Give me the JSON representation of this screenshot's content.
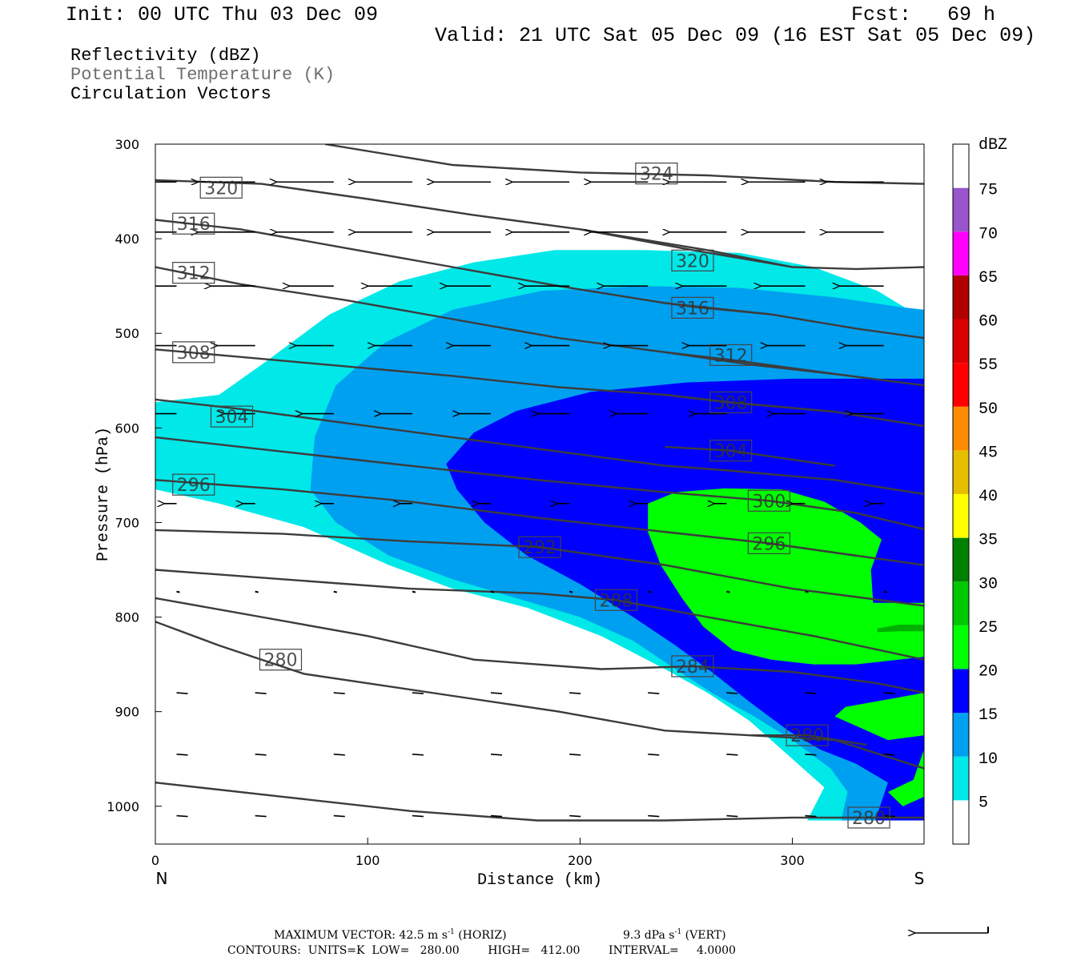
{
  "header": {
    "init": "Init: 00 UTC Thu 03 Dec 09",
    "fcst": "Fcst:   69 h",
    "valid": "Valid: 21 UTC Sat 05 Dec 09 (16 EST Sat 05 Dec 09)"
  },
  "fields": [
    "Reflectivity (dBZ)",
    "Potential Temperature (K)",
    "Circulation Vectors"
  ],
  "footer": {
    "max_vector_prefix": "MAXIMUM VECTOR:  42.5 m s",
    "max_vector_h_unit": " (HORIZ)",
    "max_vector_v": "9.3 dPa s",
    "max_vector_v_unit": " (VERT)",
    "exp": "-1",
    "contours_line": "CONTOURS:  UNITS=K  LOW=   280.00        HIGH=   412.00        INTERVAL=     4.0000"
  },
  "colors": {
    "cyan": "#00e8e8",
    "lightblue": "#00a0f0",
    "blue": "#0000ff",
    "green": "#00ff00",
    "darkgreen": "#00b000",
    "contour": "#3c3c3c"
  },
  "chart_data": {
    "type": "cross-section",
    "xlabel": "Distance (km)",
    "ylabel": "Pressure (hPa)",
    "xlim": [
      0,
      362
    ],
    "ylim": [
      1040,
      300
    ],
    "x_ticks": [
      "0",
      "100",
      "200",
      "300"
    ],
    "x_tick_values": [
      0,
      100,
      200,
      300
    ],
    "y_ticks": [
      "300",
      "400",
      "500",
      "600",
      "700",
      "800",
      "900",
      "1000"
    ],
    "y_tick_values": [
      300,
      400,
      500,
      600,
      700,
      800,
      900,
      1000
    ],
    "endpoints": {
      "left": "N",
      "right": "S"
    },
    "colorbar": {
      "unit": "dBZ",
      "labels": [
        "5",
        "10",
        "15",
        "20",
        "25",
        "30",
        "35",
        "40",
        "45",
        "50",
        "55",
        "60",
        "65",
        "70",
        "75"
      ],
      "colors": [
        "#ffffff",
        "#00e8e8",
        "#00a0f0",
        "#0000ff",
        "#00ff00",
        "#00c800",
        "#008000",
        "#ffff00",
        "#e6c000",
        "#ff8c00",
        "#ff0000",
        "#d80000",
        "#b00000",
        "#ff00ff",
        "#9955cc",
        "#ffffff"
      ]
    },
    "reflectivity_regions": [
      {
        "dbz": 5,
        "color": "#00e8e8",
        "points": [
          [
            0,
            573
          ],
          [
            30,
            565
          ],
          [
            52,
            530
          ],
          [
            82,
            480
          ],
          [
            115,
            445
          ],
          [
            150,
            425
          ],
          [
            188,
            412
          ],
          [
            230,
            412
          ],
          [
            275,
            415
          ],
          [
            310,
            430
          ],
          [
            340,
            455
          ],
          [
            362,
            485
          ],
          [
            362,
            1015
          ],
          [
            307,
            1015
          ],
          [
            315,
            980
          ],
          [
            300,
            950
          ],
          [
            280,
            910
          ],
          [
            260,
            880
          ],
          [
            240,
            855
          ],
          [
            210,
            820
          ],
          [
            175,
            790
          ],
          [
            140,
            770
          ],
          [
            110,
            745
          ],
          [
            70,
            705
          ],
          [
            30,
            680
          ],
          [
            0,
            665
          ]
        ]
      },
      {
        "dbz": 10,
        "color": "#00a0f0",
        "points": [
          [
            73,
            665
          ],
          [
            75,
            610
          ],
          [
            85,
            555
          ],
          [
            108,
            510
          ],
          [
            140,
            475
          ],
          [
            182,
            455
          ],
          [
            230,
            450
          ],
          [
            275,
            452
          ],
          [
            320,
            462
          ],
          [
            350,
            472
          ],
          [
            362,
            475
          ],
          [
            362,
            1015
          ],
          [
            323,
            1015
          ],
          [
            326,
            985
          ],
          [
            318,
            960
          ],
          [
            300,
            930
          ],
          [
            282,
            905
          ],
          [
            262,
            880
          ],
          [
            245,
            855
          ],
          [
            225,
            825
          ],
          [
            200,
            800
          ],
          [
            170,
            780
          ],
          [
            140,
            760
          ],
          [
            110,
            735
          ],
          [
            85,
            700
          ]
        ]
      },
      {
        "dbz": 15,
        "color": "#0000ff",
        "points": [
          [
            137,
            638
          ],
          [
            150,
            605
          ],
          [
            170,
            582
          ],
          [
            205,
            562
          ],
          [
            250,
            552
          ],
          [
            300,
            548
          ],
          [
            340,
            548
          ],
          [
            362,
            548
          ],
          [
            362,
            1015
          ],
          [
            339,
            1015
          ],
          [
            345,
            975
          ],
          [
            330,
            955
          ],
          [
            313,
            940
          ],
          [
            298,
            920
          ],
          [
            280,
            890
          ],
          [
            262,
            858
          ],
          [
            245,
            830
          ],
          [
            225,
            800
          ],
          [
            200,
            765
          ],
          [
            175,
            735
          ],
          [
            155,
            700
          ],
          [
            142,
            665
          ]
        ]
      },
      {
        "dbz": 20,
        "color": "#00ff00",
        "points": [
          [
            232,
            680
          ],
          [
            245,
            668
          ],
          [
            268,
            664
          ],
          [
            295,
            665
          ],
          [
            315,
            678
          ],
          [
            332,
            700
          ],
          [
            342,
            718
          ],
          [
            337,
            750
          ],
          [
            338,
            785
          ],
          [
            362,
            785
          ],
          [
            362,
            880
          ],
          [
            350,
            885
          ],
          [
            325,
            895
          ],
          [
            320,
            905
          ],
          [
            345,
            930
          ],
          [
            362,
            925
          ],
          [
            362,
            940
          ],
          [
            357,
            972
          ],
          [
            345,
            985
          ],
          [
            352,
            1000
          ],
          [
            362,
            990
          ],
          [
            362,
            842
          ],
          [
            330,
            850
          ],
          [
            310,
            850
          ],
          [
            290,
            845
          ],
          [
            272,
            835
          ],
          [
            258,
            810
          ],
          [
            248,
            780
          ],
          [
            238,
            745
          ],
          [
            232,
            710
          ]
        ]
      },
      {
        "dbz": 25,
        "color": "#00b000",
        "points": [
          [
            340,
            812
          ],
          [
            350,
            808
          ],
          [
            362,
            808
          ],
          [
            362,
            815
          ],
          [
            350,
            815
          ],
          [
            340,
            816
          ]
        ]
      }
    ],
    "theta_contours": [
      {
        "value": 324,
        "label": "324",
        "label_at": [
          236,
          331
        ],
        "points": [
          [
            80,
            300
          ],
          [
            140,
            322
          ],
          [
            200,
            330
          ],
          [
            260,
            333
          ],
          [
            320,
            340
          ],
          [
            362,
            342
          ]
        ]
      },
      {
        "value": 320,
        "label": "320",
        "label_at": [
          31,
          346
        ],
        "points": [
          [
            0,
            338
          ],
          [
            50,
            342
          ],
          [
            100,
            358
          ],
          [
            150,
            375
          ],
          [
            200,
            390
          ],
          [
            260,
            412
          ],
          [
            300,
            430
          ],
          [
            330,
            432
          ],
          [
            362,
            430
          ]
        ]
      },
      {
        "value": 320,
        "label": "320",
        "label_at": [
          253,
          423
        ],
        "points": [
          [
            200,
            390
          ],
          [
            253,
            412
          ],
          [
            300,
            430
          ]
        ]
      },
      {
        "value": 316,
        "label": "316",
        "label_at": [
          18,
          384
        ],
        "points": [
          [
            0,
            380
          ],
          [
            40,
            390
          ],
          [
            90,
            410
          ],
          [
            140,
            430
          ],
          [
            190,
            450
          ],
          [
            240,
            468
          ],
          [
            290,
            480
          ],
          [
            330,
            495
          ],
          [
            362,
            505
          ]
        ]
      },
      {
        "value": 316,
        "label": "316",
        "label_at": [
          253,
          473
        ],
        "points": [
          [
            240,
            468
          ],
          [
            253,
            472
          ],
          [
            290,
            480
          ]
        ]
      },
      {
        "value": 312,
        "label": "312",
        "label_at": [
          18,
          436
        ],
        "points": [
          [
            0,
            430
          ],
          [
            40,
            448
          ],
          [
            90,
            465
          ],
          [
            140,
            485
          ],
          [
            190,
            505
          ],
          [
            240,
            520
          ],
          [
            280,
            533
          ],
          [
            320,
            543
          ],
          [
            362,
            555
          ]
        ]
      },
      {
        "value": 312,
        "label": "312",
        "label_at": [
          271,
          523
        ],
        "points": [
          [
            240,
            520
          ],
          [
            271,
            528
          ],
          [
            320,
            543
          ]
        ]
      },
      {
        "value": 308,
        "label": "308",
        "label_at": [
          18,
          520
        ],
        "points": [
          [
            0,
            517
          ],
          [
            40,
            525
          ],
          [
            90,
            535
          ],
          [
            140,
            545
          ],
          [
            190,
            557
          ],
          [
            240,
            565
          ],
          [
            270,
            573
          ],
          [
            320,
            583
          ],
          [
            362,
            598
          ]
        ]
      },
      {
        "value": 308,
        "label": "308",
        "label_at": [
          271,
          573
        ],
        "points": [
          [
            240,
            565
          ],
          [
            271,
            573
          ],
          [
            320,
            583
          ]
        ]
      },
      {
        "value": 304,
        "label": "304",
        "label_at": [
          36,
          588
        ],
        "points": [
          [
            0,
            570
          ],
          [
            40,
            580
          ],
          [
            90,
            595
          ],
          [
            140,
            610
          ],
          [
            190,
            625
          ],
          [
            240,
            640
          ],
          [
            270,
            645
          ],
          [
            320,
            655
          ],
          [
            362,
            670
          ]
        ]
      },
      {
        "value": 304,
        "label": "304",
        "label_at": [
          271,
          624
        ],
        "points": [
          [
            240,
            620
          ],
          [
            271,
            624
          ],
          [
            320,
            640
          ]
        ]
      },
      {
        "value": 300,
        "label": "300",
        "label_at": [
          289,
          677
        ],
        "points": [
          [
            0,
            610
          ],
          [
            60,
            625
          ],
          [
            120,
            640
          ],
          [
            180,
            655
          ],
          [
            240,
            668
          ],
          [
            289,
            677
          ],
          [
            330,
            690
          ],
          [
            362,
            707
          ]
        ]
      },
      {
        "value": 296,
        "label": "296",
        "label_at": [
          18,
          660
        ],
        "points": [
          [
            0,
            655
          ],
          [
            60,
            665
          ],
          [
            120,
            678
          ],
          [
            180,
            695
          ],
          [
            240,
            710
          ],
          [
            289,
            722
          ],
          [
            330,
            735
          ],
          [
            362,
            745
          ]
        ]
      },
      {
        "value": 296,
        "label": "296",
        "label_at": [
          289,
          722
        ],
        "points": [
          [
            240,
            710
          ],
          [
            289,
            722
          ],
          [
            330,
            735
          ]
        ]
      },
      {
        "value": 292,
        "label": "292",
        "label_at": [
          181,
          726
        ],
        "points": [
          [
            0,
            708
          ],
          [
            60,
            712
          ],
          [
            120,
            720
          ],
          [
            181,
            726
          ],
          [
            240,
            745
          ],
          [
            300,
            770
          ],
          [
            362,
            788
          ]
        ]
      },
      {
        "value": 288,
        "label": "288",
        "label_at": [
          217,
          782
        ],
        "points": [
          [
            0,
            750
          ],
          [
            60,
            760
          ],
          [
            120,
            770
          ],
          [
            180,
            775
          ],
          [
            217,
            782
          ],
          [
            260,
            800
          ],
          [
            310,
            820
          ],
          [
            362,
            845
          ]
        ]
      },
      {
        "value": 284,
        "label": "284",
        "label_at": [
          253,
          852
        ],
        "points": [
          [
            0,
            780
          ],
          [
            50,
            800
          ],
          [
            100,
            820
          ],
          [
            150,
            845
          ],
          [
            210,
            855
          ],
          [
            253,
            852
          ],
          [
            300,
            858
          ],
          [
            340,
            870
          ],
          [
            362,
            880
          ]
        ]
      },
      {
        "value": 280,
        "label": "280",
        "label_at": [
          59,
          845
        ],
        "points": [
          [
            0,
            805
          ],
          [
            30,
            830
          ],
          [
            70,
            860
          ],
          [
            130,
            880
          ],
          [
            190,
            900
          ],
          [
            240,
            920
          ],
          [
            280,
            925
          ],
          [
            320,
            930
          ],
          [
            362,
            960
          ]
        ]
      },
      {
        "value": 280,
        "label": "280",
        "label_at": [
          307,
          925
        ],
        "points": [
          [
            280,
            925
          ],
          [
            307,
            925
          ],
          [
            335,
            935
          ]
        ]
      },
      {
        "value": 280,
        "label": "280",
        "label_at": [
          336,
          1012
        ],
        "points": [
          [
            0,
            975
          ],
          [
            60,
            990
          ],
          [
            120,
            1005
          ],
          [
            180,
            1015
          ],
          [
            240,
            1015
          ],
          [
            300,
            1012
          ],
          [
            362,
            1012
          ]
        ]
      }
    ],
    "circulation_vectors": [
      {
        "rows": [
          {
            "p": 340,
            "u": -9
          },
          {
            "p": 393,
            "u": -9
          },
          {
            "p": 450,
            "u": -7
          },
          {
            "p": 513,
            "u": -6
          },
          {
            "p": 585,
            "u": -5
          },
          {
            "p": 680,
            "u": -2
          },
          {
            "p": 773,
            "u": 0
          }
        ]
      }
    ]
  }
}
